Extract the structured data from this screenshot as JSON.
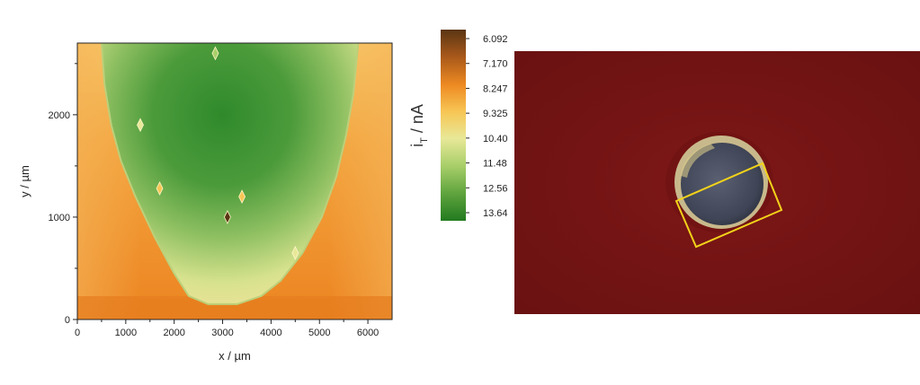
{
  "chart_data": {
    "type": "heatmap",
    "xlabel": "x / µm",
    "ylabel": "y / µm",
    "x_ticks": [
      "0",
      "1000",
      "2000",
      "3000",
      "4000",
      "5000",
      "6000"
    ],
    "y_ticks": [
      "0",
      "1000",
      "2000"
    ],
    "xlim": [
      0,
      6500
    ],
    "ylim": [
      0,
      2700
    ],
    "colorbar": {
      "label_main": "i",
      "label_sub": "T",
      "label_unit": " / nA",
      "ticks": [
        "6.092",
        "7.170",
        "8.247",
        "9.325",
        "10.40",
        "11.48",
        "12.56",
        "13.64"
      ],
      "range": [
        6.092,
        13.64
      ],
      "colors": [
        "#5a3514",
        "#a8581a",
        "#ee8a22",
        "#f7c655",
        "#e8e898",
        "#a9cf6a",
        "#5ea33d",
        "#227a1f"
      ]
    },
    "region_shape": {
      "description_values_um": "boundary of the high-current (green) region; values in µm",
      "left_edge": [
        [
          500,
          2700
        ],
        [
          560,
          2300
        ],
        [
          700,
          1900
        ],
        [
          900,
          1550
        ],
        [
          1200,
          1200
        ],
        [
          1600,
          800
        ],
        [
          2000,
          450
        ],
        [
          2300,
          230
        ],
        [
          2700,
          150
        ]
      ],
      "right_edge": [
        [
          5800,
          2700
        ],
        [
          5700,
          2200
        ],
        [
          5550,
          1800
        ],
        [
          5350,
          1400
        ],
        [
          5050,
          1000
        ],
        [
          4650,
          650
        ],
        [
          4200,
          380
        ],
        [
          3800,
          230
        ],
        [
          3300,
          150
        ]
      ]
    },
    "defects_um": [
      {
        "x": 2850,
        "y": 2600,
        "value": 11.0
      },
      {
        "x": 1300,
        "y": 1900,
        "value": 10.0
      },
      {
        "x": 1700,
        "y": 1280,
        "value": 9.6
      },
      {
        "x": 3400,
        "y": 1200,
        "value": 9.6
      },
      {
        "x": 3100,
        "y": 1000,
        "value": 6.4
      },
      {
        "x": 4500,
        "y": 650,
        "value": 10.0
      }
    ]
  },
  "photo": {
    "background_color": "#7a1515",
    "spot_color": "#4a4f60",
    "spot_ring_color": "#c2b48a",
    "box_color": "#f2d21a"
  }
}
